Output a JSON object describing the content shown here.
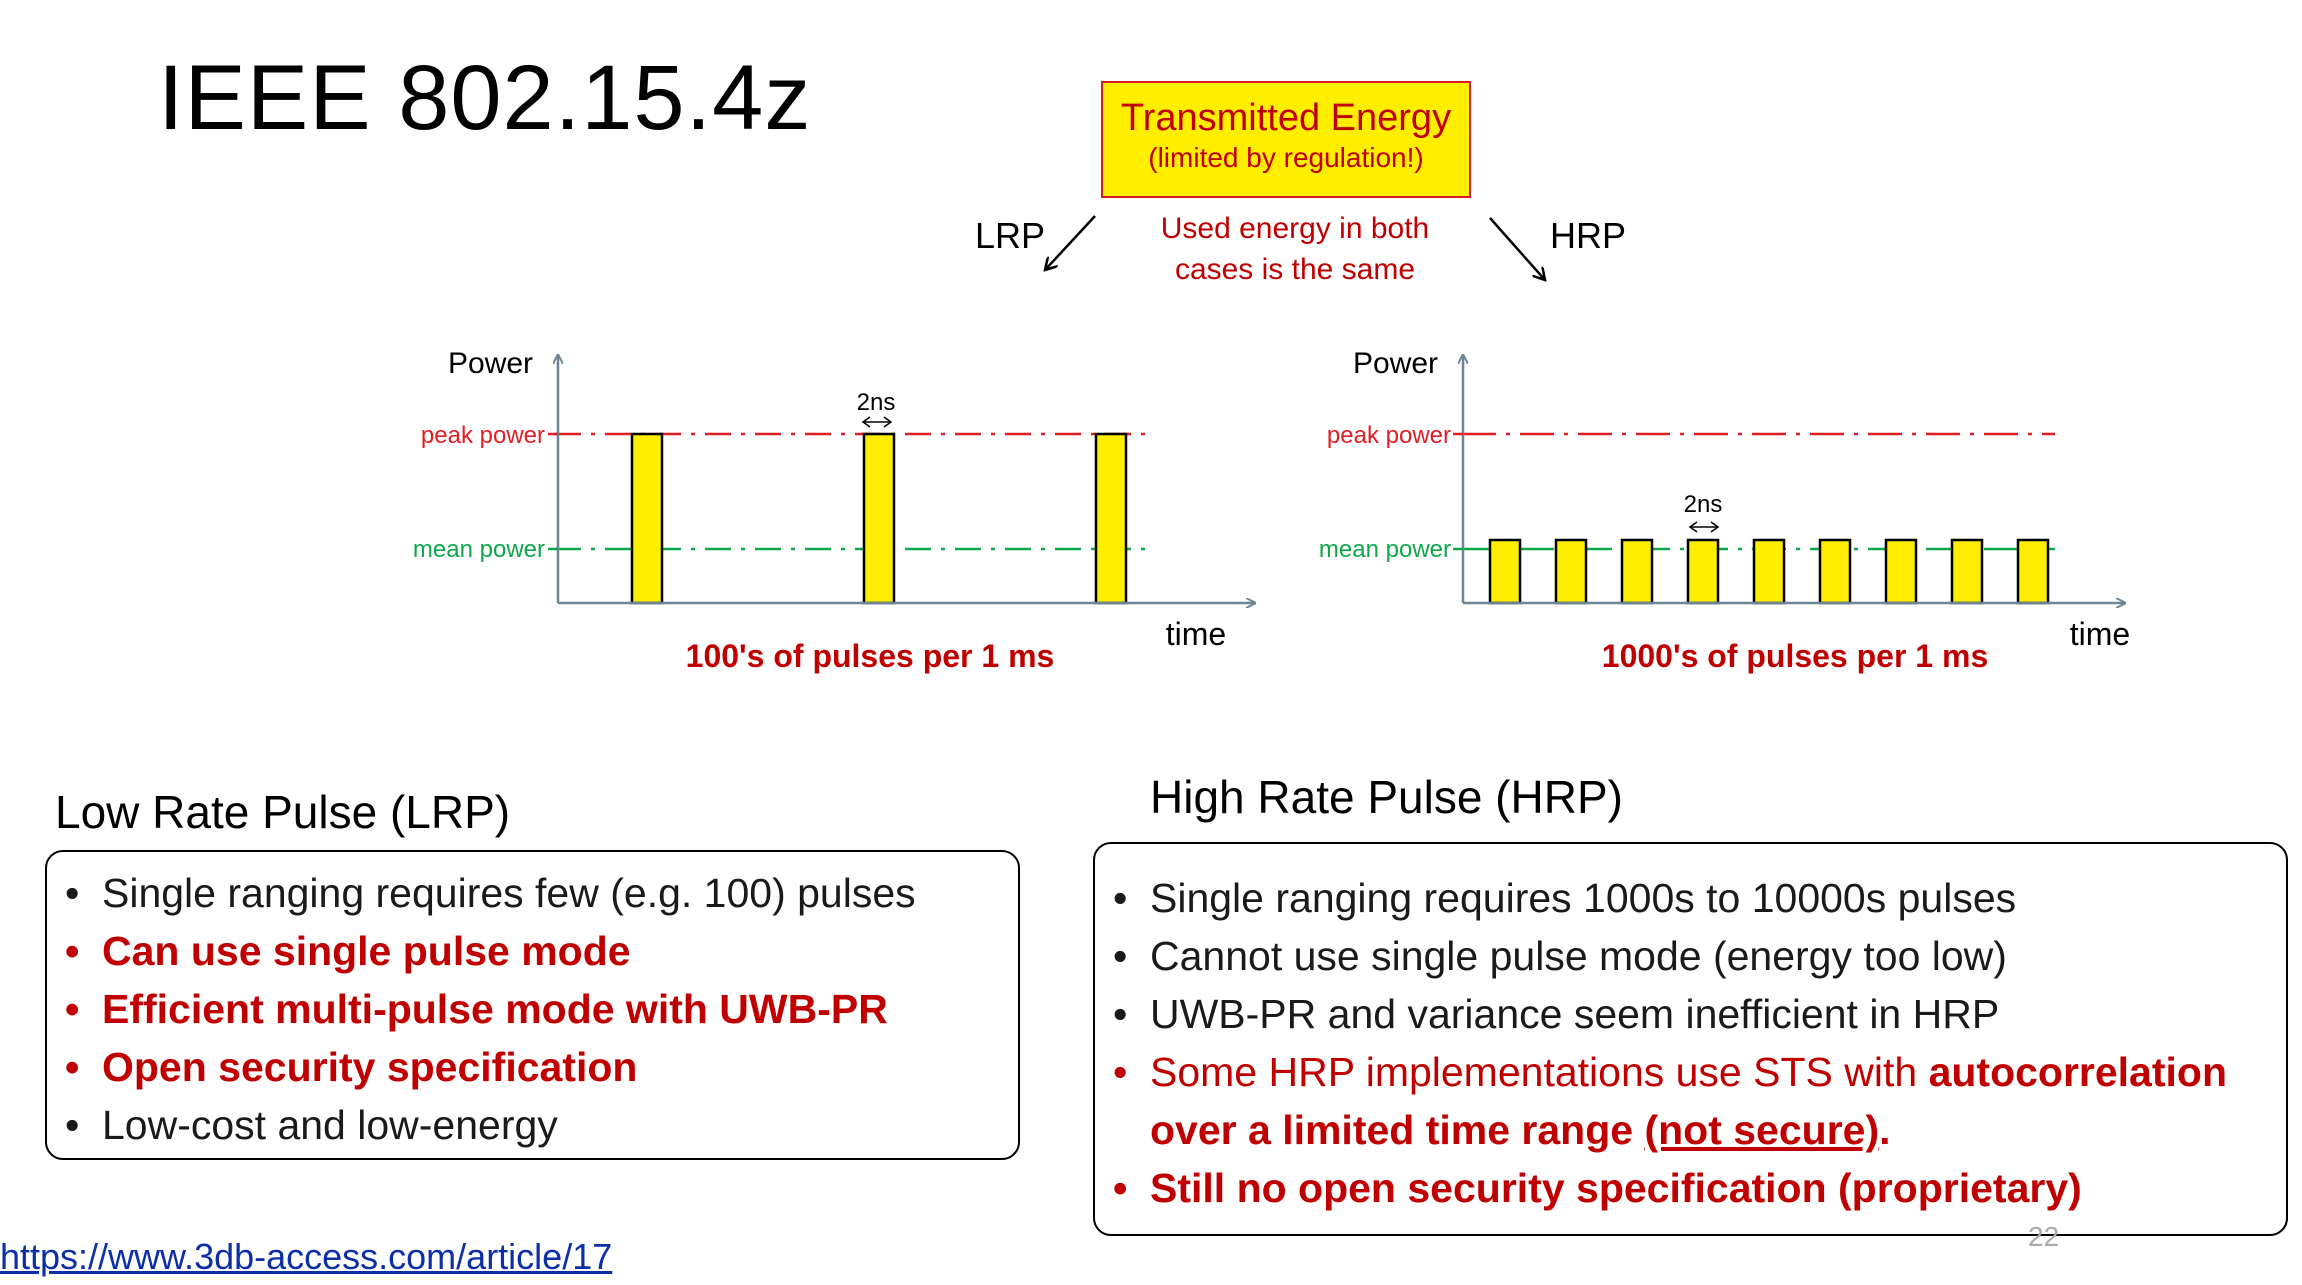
{
  "slide": {
    "title": "IEEE 802.15.4z",
    "page_number": "22",
    "link": "https://www.3db-access.com/article/17"
  },
  "energy": {
    "box_title": "Transmitted Energy",
    "box_subtitle": "(limited by regulation!)",
    "lrp_label": "LRP",
    "hrp_label": "HRP",
    "used_line1": "Used energy in both",
    "used_line2": "cases is the same"
  },
  "diagrams": {
    "lrp": {
      "y_label": "Power",
      "x_label": "time",
      "peak_label": "peak power",
      "mean_label": "mean power",
      "width_label": "2ns",
      "caption": "100's of pulses per 1 ms",
      "pulse_count": 3
    },
    "hrp": {
      "y_label": "Power",
      "x_label": "time",
      "peak_label": "peak power",
      "mean_label": "mean power",
      "width_label": "2ns",
      "caption": "1000's of pulses per 1 ms",
      "pulse_count": 9
    }
  },
  "lrp_section": {
    "title": "Low Rate Pulse (LRP)",
    "items": [
      {
        "text": "Single ranging requires few (e.g. 100) pulses",
        "style": "black"
      },
      {
        "text": "Can use single pulse mode",
        "style": "red"
      },
      {
        "text": "Efficient multi-pulse mode with UWB-PR",
        "style": "red"
      },
      {
        "text": "Open security specification",
        "style": "red"
      },
      {
        "text": "Low-cost and low-energy",
        "style": "black"
      }
    ]
  },
  "hrp_section": {
    "title": "High Rate Pulse (HRP)",
    "items": [
      {
        "text": "Single ranging requires 1000s to 10000s pulses",
        "style": "black"
      },
      {
        "text": "Cannot use single pulse mode (energy too low)",
        "style": "black"
      },
      {
        "text": "UWB-PR and variance seem inefficient in HRP",
        "style": "black"
      }
    ],
    "item4_part1": "Some HRP implementations use STS with ",
    "item4_part2": "autocorrelation over a limited time range ",
    "item4_part3": "(not secure)",
    "item4_part4": ".",
    "item5": "Still no open security specification (proprietary)"
  },
  "colors": {
    "pulse_fill": "#ffee00",
    "peak_line": "#e01e26",
    "mean_line": "#0da84a",
    "axis": "#6d8696",
    "red_text": "#c00000"
  }
}
